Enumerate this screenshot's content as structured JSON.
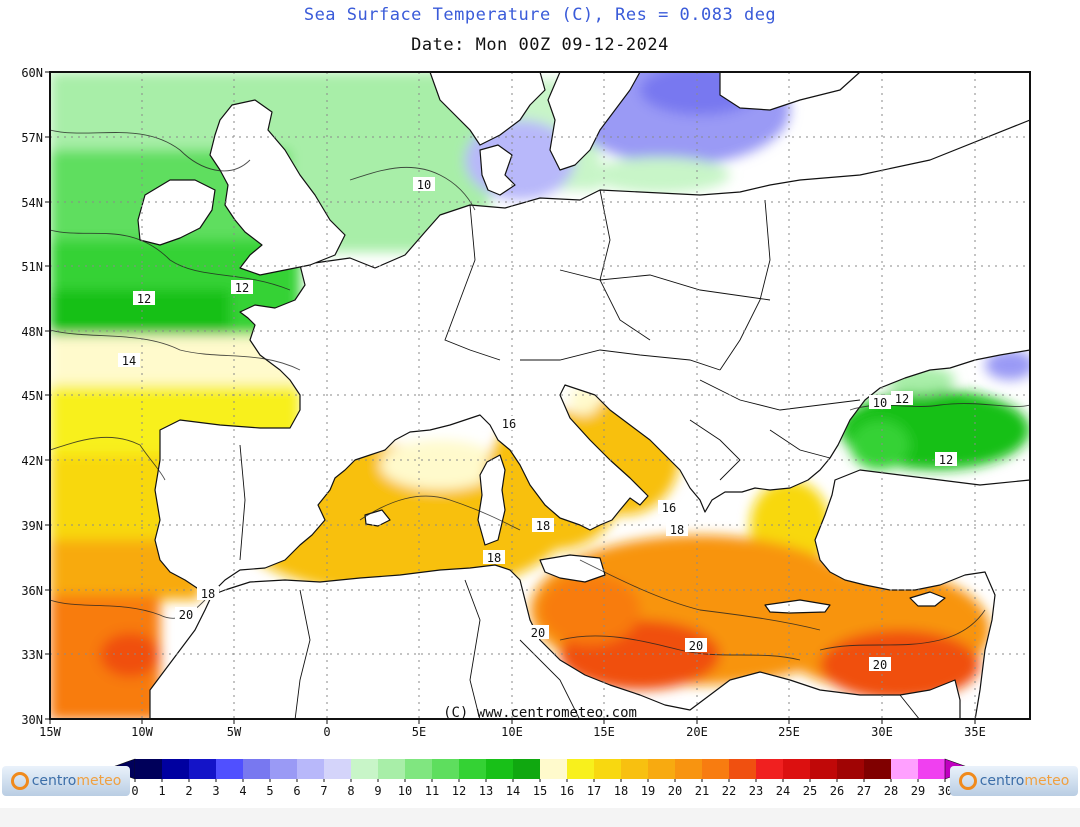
{
  "header": {
    "title": "Sea Surface Temperature (C), Res = 0.083 deg",
    "subtitle": "Date:  Mon 00Z 09-12-2024"
  },
  "map": {
    "x_axis_labels": [
      "15W",
      "10W",
      "5W",
      "0",
      "5E",
      "10E",
      "15E",
      "20E",
      "25E",
      "30E",
      "35E"
    ],
    "y_axis_labels": [
      "60N",
      "57N",
      "54N",
      "51N",
      "48N",
      "45N",
      "42N",
      "39N",
      "36N",
      "33N",
      "30N"
    ],
    "contour_labels": [
      "10",
      "12",
      "12",
      "14",
      "10",
      "12",
      "12",
      "16",
      "18",
      "18",
      "18",
      "16",
      "18",
      "20",
      "20",
      "20",
      "20"
    ],
    "credit": "(C) www.centrometeo.com",
    "colors": {
      "land": "#ffffff",
      "coast": "#111111",
      "gridline": "#8a8a8a"
    }
  },
  "colorbar": {
    "ticks": [
      "0",
      "1",
      "2",
      "3",
      "4",
      "5",
      "6",
      "7",
      "8",
      "9",
      "10",
      "11",
      "12",
      "13",
      "14",
      "15",
      "16",
      "17",
      "18",
      "19",
      "20",
      "21",
      "22",
      "23",
      "24",
      "25",
      "26",
      "27",
      "28",
      "29",
      "30"
    ],
    "colors": [
      "#00005a",
      "#0000a0",
      "#1414c8",
      "#5050ff",
      "#7878f0",
      "#9a9af5",
      "#b8b8fa",
      "#d4d4fa",
      "#c8f5c8",
      "#a8eea8",
      "#80e680",
      "#5ede5e",
      "#34d234",
      "#18c018",
      "#10a810",
      "#fffacc",
      "#f8f01c",
      "#f8d810",
      "#f8c010",
      "#f8aa10",
      "#f89410",
      "#f87c10",
      "#f05010",
      "#f02020",
      "#dc1010",
      "#c00808",
      "#a00404",
      "#800000",
      "#ffa0ff",
      "#f040f0",
      "#c000c0"
    ]
  },
  "brand": {
    "part1": "centro",
    "part2": "meteo"
  }
}
